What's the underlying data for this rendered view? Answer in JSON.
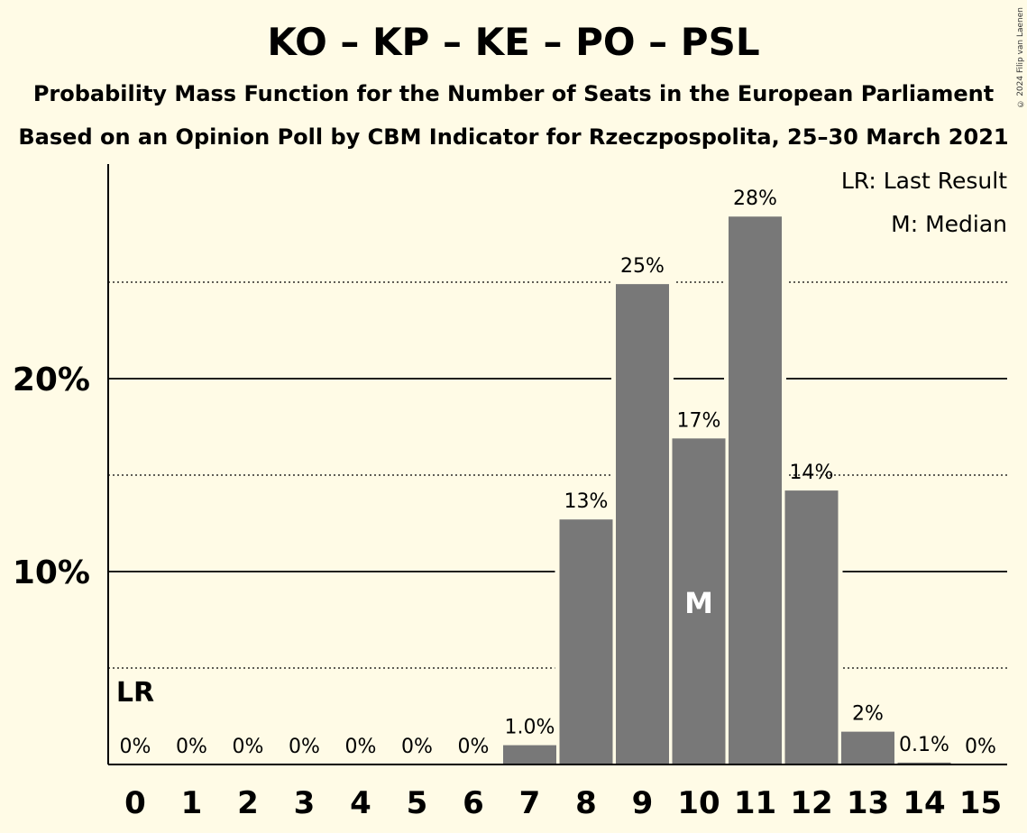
{
  "title": "KO – KP – KE – PO – PSL",
  "subtitle1": "Probability Mass Function for the Number of Seats in the European Parliament",
  "subtitle2": "Based on an Opinion Poll by CBM Indicator for Rzeczpospolita, 25–30 March 2021",
  "copyright": "© 2024 Filip van Laenen",
  "legend": {
    "last_result": "LR: Last Result",
    "median": "M: Median"
  },
  "colors": {
    "background": "#fffbe6",
    "bar": "#787878",
    "text": "#000000"
  },
  "chart_data": {
    "type": "bar",
    "categories": [
      "0",
      "1",
      "2",
      "3",
      "4",
      "5",
      "6",
      "7",
      "8",
      "9",
      "10",
      "11",
      "12",
      "13",
      "14",
      "15"
    ],
    "values": [
      0,
      0,
      0,
      0,
      0,
      0,
      0,
      1.0,
      12.7,
      24.9,
      16.9,
      28.4,
      14.2,
      1.7,
      0.1,
      0
    ],
    "data_labels": [
      "0%",
      "0%",
      "0%",
      "0%",
      "0%",
      "0%",
      "0%",
      "1.0%",
      "13%",
      "25%",
      "17%",
      "28%",
      "14%",
      "2%",
      "0.1%",
      "0%"
    ],
    "yticks": [
      10,
      20
    ],
    "ytick_labels": [
      "10%",
      "20%"
    ],
    "minor_gridlines": [
      5,
      15,
      25
    ],
    "ylim": [
      0,
      31
    ],
    "last_result_seat": "0",
    "last_result_marker": "LR",
    "median_seat": "10",
    "median_marker": "M",
    "legend_position": "top-right"
  }
}
